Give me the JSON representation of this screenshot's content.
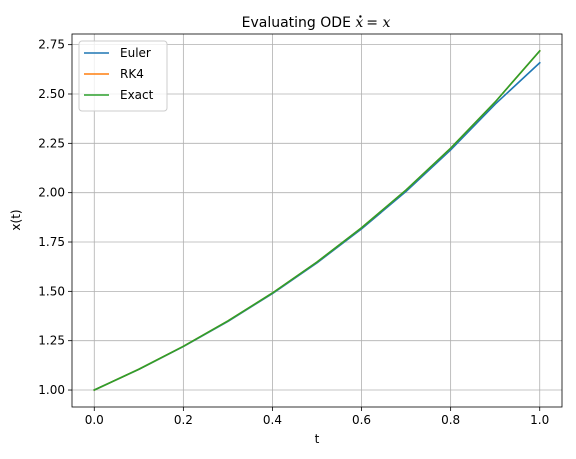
{
  "chart_data": {
    "type": "line",
    "title": "Evaluating ODE ",
    "title_math_lhs": "x",
    "title_math_rhs": "= x",
    "xlabel": "t",
    "ylabel": "x(t)",
    "xlim": [
      -0.05,
      1.05
    ],
    "ylim": [
      0.914,
      2.804
    ],
    "xticks": [
      0.0,
      0.2,
      0.4,
      0.6,
      0.8,
      1.0
    ],
    "xtick_labels": [
      "0.0",
      "0.2",
      "0.4",
      "0.6",
      "0.8",
      "1.0"
    ],
    "yticks": [
      1.0,
      1.25,
      1.5,
      1.75,
      2.0,
      2.25,
      2.5,
      2.75
    ],
    "ytick_labels": [
      "1.00",
      "1.25",
      "1.50",
      "1.75",
      "2.00",
      "2.25",
      "2.50",
      "2.75"
    ],
    "grid": true,
    "legend_position": "top-left",
    "x": [
      0.0,
      0.1,
      0.2,
      0.3,
      0.4,
      0.5,
      0.6,
      0.7,
      0.8,
      0.9,
      1.0
    ],
    "series": [
      {
        "name": "Euler",
        "color": "#1f77b4",
        "values": [
          1.0,
          1.1046,
          1.2202,
          1.3478,
          1.4888,
          1.6446,
          1.8166,
          2.0066,
          2.2166,
          2.4485,
          2.6581
        ]
      },
      {
        "name": "RK4",
        "color": "#ff7f0e",
        "values": [
          1.0,
          1.1052,
          1.2214,
          1.3499,
          1.4918,
          1.6487,
          1.8221,
          2.0138,
          2.2255,
          2.4596,
          2.7183
        ]
      },
      {
        "name": "Exact",
        "color": "#2ca02c",
        "values": [
          1.0,
          1.1052,
          1.2214,
          1.3499,
          1.4918,
          1.6487,
          1.8221,
          2.0138,
          2.2255,
          2.4596,
          2.7183
        ]
      }
    ]
  }
}
